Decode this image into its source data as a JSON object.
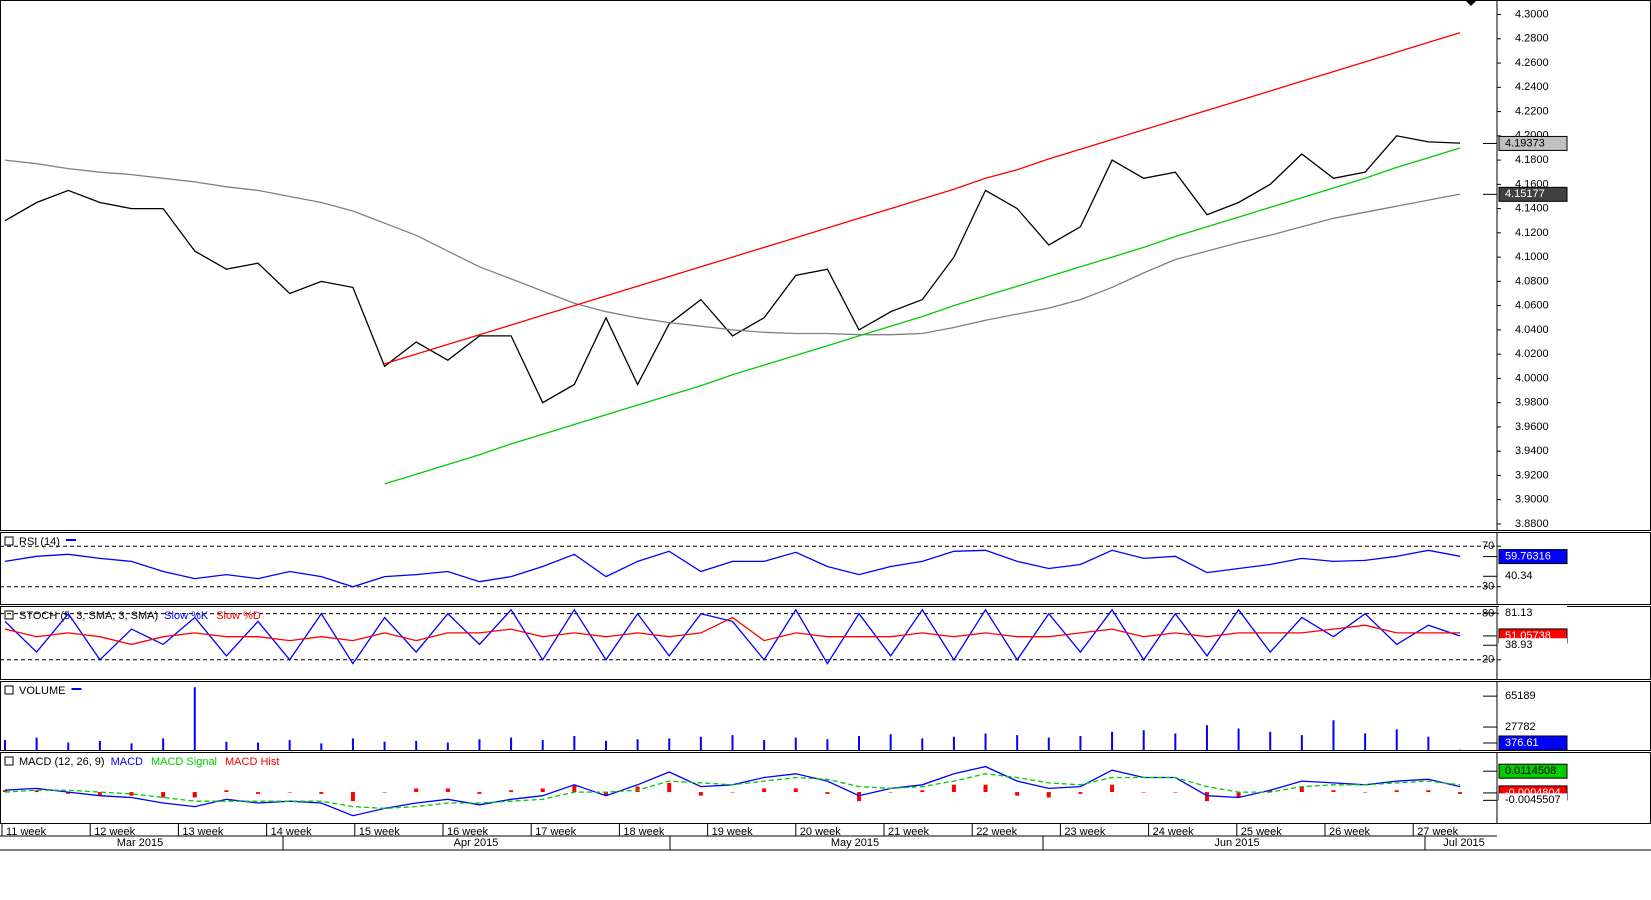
{
  "chart_data": [
    {
      "type": "line",
      "series": [
        {
          "color": "#000000",
          "values": [
            4.13,
            4.145,
            4.155,
            4.145,
            4.14,
            4.14,
            4.105,
            4.09,
            4.095,
            4.07,
            4.08,
            4.075,
            4.01,
            4.03,
            4.015,
            4.035,
            4.035,
            3.98,
            3.995,
            4.05,
            3.995,
            4.045,
            4.065,
            4.035,
            4.05,
            4.085,
            4.09,
            4.04,
            4.055,
            4.065,
            4.1,
            4.155,
            4.14,
            4.11,
            4.125,
            4.18,
            4.165,
            4.17,
            4.135,
            4.145,
            4.16,
            4.185,
            4.165,
            4.17,
            4.2,
            4.195,
            4.194
          ]
        },
        {
          "color": "#808080",
          "values": [
            4.18,
            4.177,
            4.173,
            4.17,
            4.168,
            4.165,
            4.162,
            4.158,
            4.155,
            4.15,
            4.145,
            4.138,
            4.128,
            4.118,
            4.105,
            4.092,
            4.082,
            4.072,
            4.062,
            4.055,
            4.05,
            4.046,
            4.043,
            4.04,
            4.038,
            4.037,
            4.037,
            4.036,
            4.036,
            4.037,
            4.042,
            4.048,
            4.053,
            4.058,
            4.065,
            4.075,
            4.087,
            4.098,
            4.105,
            4.112,
            4.118,
            4.125,
            4.132,
            4.137,
            4.142,
            4.147,
            4.152
          ]
        },
        {
          "color": "#ff0000",
          "values": [
            null,
            null,
            null,
            null,
            null,
            null,
            null,
            null,
            null,
            null,
            null,
            null,
            4.012,
            4.02,
            4.028,
            4.036,
            4.044,
            4.052,
            4.06,
            4.068,
            4.076,
            4.084,
            4.092,
            4.1,
            4.108,
            4.116,
            4.124,
            4.132,
            4.14,
            4.148,
            4.156,
            4.165,
            4.172,
            4.181,
            4.189,
            4.197,
            4.205,
            4.213,
            4.221,
            4.229,
            4.237,
            4.245,
            4.253,
            4.261,
            4.269,
            4.277,
            4.285
          ]
        },
        {
          "color": "#00cc00",
          "values": [
            null,
            null,
            null,
            null,
            null,
            null,
            null,
            null,
            null,
            null,
            null,
            null,
            3.913,
            3.921,
            3.929,
            3.937,
            3.946,
            3.954,
            3.962,
            3.97,
            3.978,
            3.986,
            3.994,
            4.003,
            4.011,
            4.019,
            4.027,
            4.035,
            4.043,
            4.051,
            4.06,
            4.068,
            4.076,
            4.084,
            4.092,
            4.1,
            4.108,
            4.117,
            4.125,
            4.133,
            4.141,
            4.149,
            4.157,
            4.165,
            4.174,
            4.182,
            4.19
          ]
        }
      ],
      "ylim": [
        3.875,
        4.312
      ],
      "yticks": [
        {
          "value": 4.3,
          "label": "4.3000"
        },
        {
          "value": 4.28,
          "label": "4.2800"
        },
        {
          "value": 4.26,
          "label": "4.2600"
        },
        {
          "value": 4.24,
          "label": "4.2400"
        },
        {
          "value": 4.22,
          "label": "4.2200"
        },
        {
          "value": 4.2,
          "label": "4.2000"
        },
        {
          "value": 4.18,
          "label": "4.1800"
        },
        {
          "value": 4.16,
          "label": "4.1600"
        },
        {
          "value": 4.14,
          "label": "4.1400"
        },
        {
          "value": 4.12,
          "label": "4.1200"
        },
        {
          "value": 4.1,
          "label": "4.1000"
        },
        {
          "value": 4.08,
          "label": "4.0800"
        },
        {
          "value": 4.06,
          "label": "4.0600"
        },
        {
          "value": 4.04,
          "label": "4.0400"
        },
        {
          "value": 4.02,
          "label": "4.0200"
        },
        {
          "value": 4,
          "label": "4.0000"
        },
        {
          "value": 3.98,
          "label": "3.9800"
        },
        {
          "value": 3.96,
          "label": "3.9600"
        },
        {
          "value": 3.94,
          "label": "3.9400"
        },
        {
          "value": 3.92,
          "label": "3.9200"
        },
        {
          "value": 3.9,
          "label": "3.9000"
        },
        {
          "value": 3.88,
          "label": "3.8800"
        }
      ],
      "markers": [
        4.19373,
        4.15177
      ],
      "marker_colors": [
        "#c0c0c0",
        "#404040"
      ],
      "x_labels": [
        "11 week",
        "12 week",
        "13 week",
        "14 week",
        "15 week",
        "16 week",
        "17 week",
        "18 week",
        "19 week",
        "20 week",
        "21 week",
        "22 week",
        "23 week",
        "24 week",
        "25 week",
        "26 week",
        "27 week"
      ],
      "month_labels": [
        "Mar 2015",
        "Apr 2015",
        "May 2015",
        "Jun 2015",
        "Jul 2015"
      ]
    },
    {
      "type": "line",
      "title": "RSI (14)",
      "series": [
        {
          "color": "#0000ff",
          "values": [
            55,
            60,
            62,
            58,
            55,
            45,
            38,
            42,
            38,
            45,
            40,
            30,
            40,
            42,
            45,
            35,
            40,
            50,
            62,
            40,
            55,
            65,
            45,
            55,
            55,
            64,
            50,
            42,
            50,
            55,
            65,
            66,
            55,
            48,
            52,
            66,
            58,
            60,
            44,
            48,
            52,
            58,
            55,
            56,
            60,
            66,
            60
          ]
        }
      ],
      "ylim": [
        13,
        84
      ],
      "yticks": [
        70,
        30
      ],
      "markers": [
        59.76316,
        40.34
      ],
      "marker_colors": [
        "#0000ff",
        "#ffffff"
      ]
    },
    {
      "type": "line",
      "title": "STOCH (5, 3, SMA, 3, SMA)",
      "series": [
        {
          "name": "Slow %K",
          "color": "#0000ff",
          "values": [
            70,
            30,
            80,
            20,
            60,
            40,
            75,
            25,
            70,
            20,
            80,
            15,
            75,
            30,
            80,
            40,
            85,
            20,
            85,
            20,
            80,
            25,
            80,
            70,
            20,
            85,
            15,
            80,
            25,
            85,
            20,
            85,
            20,
            80,
            30,
            85,
            20,
            80,
            25,
            85,
            30,
            75,
            50,
            80,
            40,
            65,
            51
          ]
        },
        {
          "name": "Slow %D",
          "color": "#ff0000",
          "values": [
            60,
            50,
            55,
            50,
            40,
            50,
            55,
            50,
            50,
            45,
            50,
            45,
            55,
            45,
            55,
            55,
            60,
            50,
            55,
            50,
            55,
            50,
            55,
            75,
            45,
            55,
            50,
            50,
            50,
            55,
            50,
            55,
            50,
            50,
            55,
            60,
            50,
            55,
            50,
            55,
            55,
            55,
            60,
            65,
            55,
            55,
            55
          ]
        }
      ],
      "ylim": [
        -5,
        90
      ],
      "yticks": [
        80,
        20
      ],
      "markers": [
        81.13,
        51.05738,
        38.93
      ],
      "marker_colors": [
        "#ffffff",
        "#ff0000",
        "#ffffff"
      ]
    },
    {
      "type": "bar",
      "title": "VOLUME",
      "color": "#0000ff",
      "values": [
        12000,
        15000,
        9000,
        11000,
        8000,
        14000,
        76000,
        10000,
        9000,
        12000,
        8000,
        14000,
        10000,
        11000,
        9000,
        13000,
        15000,
        12000,
        17000,
        11000,
        13000,
        14000,
        16000,
        18000,
        12000,
        15000,
        13000,
        17000,
        19000,
        14000,
        16000,
        20000,
        18000,
        15000,
        17000,
        22000,
        24000,
        20000,
        30000,
        26000,
        22000,
        18000,
        36000,
        20000,
        25000,
        16000,
        376.61
      ],
      "ylim": [
        0,
        83500
      ],
      "markers": [
        65189,
        27782,
        376.61
      ],
      "marker_colors": [
        "#ffffff",
        "#ffffff",
        "#0000ff"
      ]
    },
    {
      "type": "macd",
      "title": "MACD (12, 26, 9)",
      "series": [
        {
          "name": "MACD",
          "color": "#0000ff",
          "values": [
            0.001,
            0.002,
            0.0,
            -0.002,
            -0.003,
            -0.006,
            -0.008,
            -0.004,
            -0.006,
            -0.005,
            -0.006,
            -0.013,
            -0.009,
            -0.006,
            -0.004,
            -0.007,
            -0.004,
            -0.002,
            0.004,
            -0.002,
            0.004,
            0.011,
            0.003,
            0.004,
            0.008,
            0.01,
            0.006,
            -0.002,
            0.002,
            0.004,
            0.01,
            0.014,
            0.006,
            0.002,
            0.003,
            0.012,
            0.008,
            0.008,
            -0.002,
            -0.003,
            0.001,
            0.006,
            0.005,
            0.004,
            0.006,
            0.007,
            0.003
          ]
        },
        {
          "name": "MACD Signal",
          "color": "#00cc00",
          "values": [
            0.0,
            0.001,
            0.001,
            0.0,
            -0.001,
            -0.003,
            -0.005,
            -0.005,
            -0.005,
            -0.005,
            -0.005,
            -0.008,
            -0.009,
            -0.008,
            -0.006,
            -0.006,
            -0.005,
            -0.004,
            0.0,
            0.0,
            0.001,
            0.006,
            0.005,
            0.004,
            0.006,
            0.008,
            0.007,
            0.003,
            0.002,
            0.003,
            0.006,
            0.01,
            0.008,
            0.005,
            0.004,
            0.008,
            0.008,
            0.008,
            0.003,
            0.0,
            0.0,
            0.003,
            0.004,
            0.004,
            0.005,
            0.006,
            0.004
          ]
        },
        {
          "name": "MACD Hist",
          "color": "#ff0000",
          "values": [
            0.001,
            0.001,
            -0.001,
            -0.002,
            -0.002,
            -0.003,
            -0.003,
            0.001,
            -0.001,
            0.0,
            -0.001,
            -0.005,
            0.0,
            0.002,
            0.002,
            -0.001,
            0.001,
            0.002,
            0.004,
            -0.002,
            0.003,
            0.005,
            -0.002,
            0.0,
            0.002,
            0.002,
            -0.001,
            -0.005,
            0.0,
            0.001,
            0.004,
            0.004,
            -0.002,
            -0.003,
            -0.001,
            0.004,
            0.0,
            0.0,
            -0.005,
            -0.003,
            0.001,
            0.003,
            0.001,
            0.0,
            0.001,
            0.001,
            -0.001
          ]
        }
      ],
      "ylim": [
        -0.017,
        0.022
      ],
      "markers": [
        0.0114508,
        -0.0004804,
        -0.0045507
      ],
      "marker_colors": [
        "#00cc00",
        "#ff0000",
        "#ffffff"
      ]
    }
  ]
}
